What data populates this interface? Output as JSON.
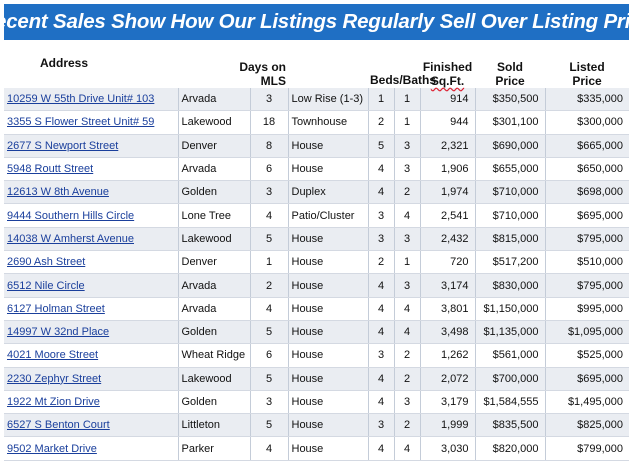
{
  "banner": {
    "title": "Recent Sales Show How Our Listings Regularly Sell Over Listing Price"
  },
  "headers": {
    "address": "Address",
    "days_line1": "Days on",
    "days_line2": "MLS",
    "type": "",
    "beds_baths": "Beds/Baths",
    "sqft_line1": "Finished",
    "sqft_line2": "Sq.Ft.",
    "sold_line1": "Sold",
    "sold_line2": "Price",
    "listed_line1": "Listed",
    "listed_line2": "Price"
  },
  "rows": [
    {
      "address": "10259 W 55th Drive Unit# 103",
      "city": "Arvada",
      "days": "3",
      "type": "Low Rise (1-3)",
      "beds": "1",
      "baths": "1",
      "sqft": "914",
      "sold": "$350,500",
      "listed": "$335,000"
    },
    {
      "address": "3355 S Flower Street Unit# 59",
      "city": "Lakewood",
      "days": "18",
      "type": "Townhouse",
      "beds": "2",
      "baths": "1",
      "sqft": "944",
      "sold": "$301,100",
      "listed": "$300,000"
    },
    {
      "address": "2677 S Newport Street",
      "city": "Denver",
      "days": "8",
      "type": "House",
      "beds": "5",
      "baths": "3",
      "sqft": "2,321",
      "sold": "$690,000",
      "listed": "$665,000"
    },
    {
      "address": "5948 Routt Street",
      "city": "Arvada",
      "days": "6",
      "type": "House",
      "beds": "4",
      "baths": "3",
      "sqft": "1,906",
      "sold": "$655,000",
      "listed": "$650,000"
    },
    {
      "address": "12613 W 8th Avenue",
      "city": "Golden",
      "days": "3",
      "type": "Duplex",
      "beds": "4",
      "baths": "2",
      "sqft": "1,974",
      "sold": "$710,000",
      "listed": "$698,000"
    },
    {
      "address": "9444 Southern Hills Circle",
      "city": "Lone Tree",
      "days": "4",
      "type": "Patio/Cluster",
      "beds": "3",
      "baths": "4",
      "sqft": "2,541",
      "sold": "$710,000",
      "listed": "$695,000"
    },
    {
      "address": "14038 W Amherst Avenue",
      "city": "Lakewood",
      "days": "5",
      "type": "House",
      "beds": "3",
      "baths": "3",
      "sqft": "2,432",
      "sold": "$815,000",
      "listed": "$795,000"
    },
    {
      "address": "2690 Ash Street",
      "city": "Denver",
      "days": "1",
      "type": "House",
      "beds": "2",
      "baths": "1",
      "sqft": "720",
      "sold": "$517,200",
      "listed": "$510,000"
    },
    {
      "address": "6512 Nile Circle",
      "city": "Arvada",
      "days": "2",
      "type": "House",
      "beds": "4",
      "baths": "3",
      "sqft": "3,174",
      "sold": "$830,000",
      "listed": "$795,000"
    },
    {
      "address": "6127 Holman Street",
      "city": "Arvada",
      "days": "4",
      "type": "House",
      "beds": "4",
      "baths": "4",
      "sqft": "3,801",
      "sold": "$1,150,000",
      "listed": "$995,000"
    },
    {
      "address": "14997 W 32nd Place",
      "city": "Golden",
      "days": "5",
      "type": "House",
      "beds": "4",
      "baths": "4",
      "sqft": "3,498",
      "sold": "$1,135,000",
      "listed": "$1,095,000"
    },
    {
      "address": "4021 Moore Street",
      "city": "Wheat Ridge",
      "days": "6",
      "type": "House",
      "beds": "3",
      "baths": "2",
      "sqft": "1,262",
      "sold": "$561,000",
      "listed": "$525,000"
    },
    {
      "address": "2230 Zephyr Street",
      "city": "Lakewood",
      "days": "5",
      "type": "House",
      "beds": "4",
      "baths": "2",
      "sqft": "2,072",
      "sold": "$700,000",
      "listed": "$695,000"
    },
    {
      "address": "1922 Mt Zion Drive",
      "city": "Golden",
      "days": "3",
      "type": "House",
      "beds": "4",
      "baths": "3",
      "sqft": "3,179",
      "sold": "$1,584,555",
      "listed": "$1,495,000"
    },
    {
      "address": "6527 S Benton Court",
      "city": "Littleton",
      "days": "5",
      "type": "House",
      "beds": "3",
      "baths": "2",
      "sqft": "1,999",
      "sold": "$835,500",
      "listed": "$825,000"
    },
    {
      "address": "9502 Market Drive",
      "city": "Parker",
      "days": "4",
      "type": "House",
      "beds": "4",
      "baths": "4",
      "sqft": "3,030",
      "sold": "$820,000",
      "listed": "$799,000"
    }
  ]
}
